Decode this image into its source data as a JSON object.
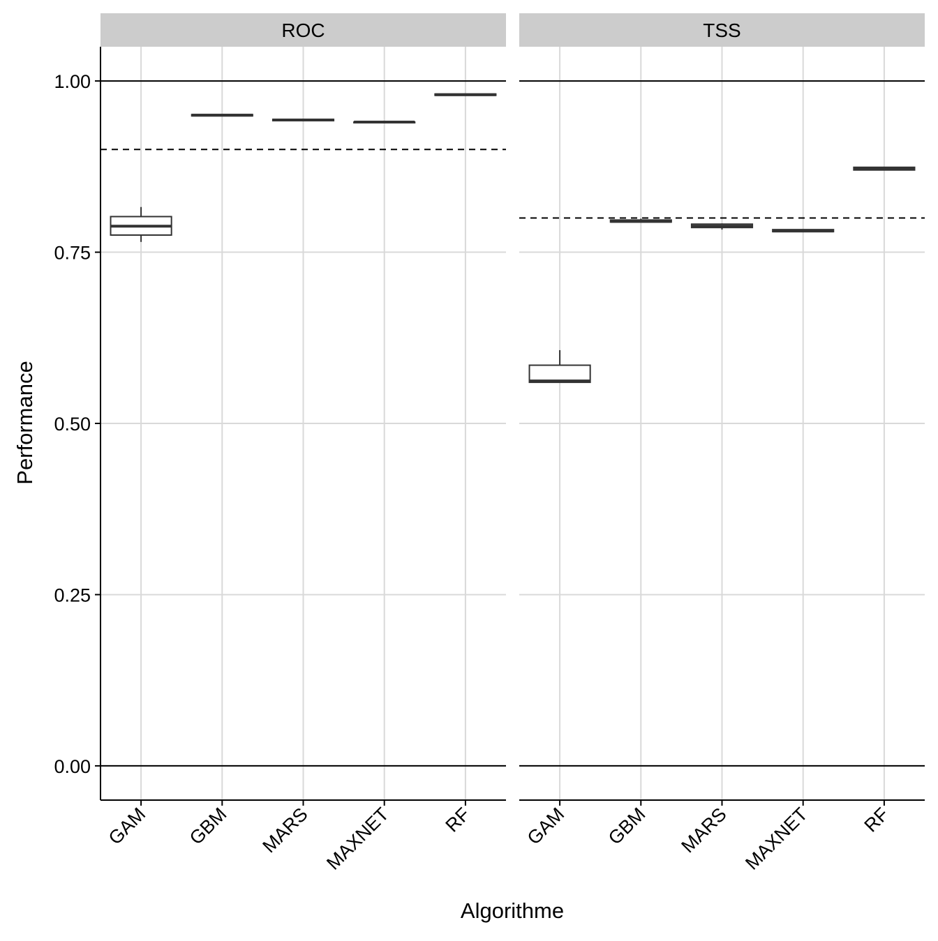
{
  "chart_data": {
    "type": "box",
    "xlabel": "Algorithme",
    "ylabel": "Performance",
    "categories": [
      "GAM",
      "GBM",
      "MARS",
      "MAXNET",
      "RF"
    ],
    "ylim": [
      -0.05,
      1.05
    ],
    "yticks": [
      0.0,
      0.25,
      0.5,
      0.75,
      1.0
    ],
    "ytick_labels": [
      "0.00",
      "0.25",
      "0.50",
      "0.75",
      "1.00"
    ],
    "reference_lines": [
      0,
      1
    ],
    "grid": true,
    "facets": [
      {
        "label": "ROC",
        "threshold": 0.9,
        "boxes": [
          {
            "category": "GAM",
            "min": 0.765,
            "q1": 0.775,
            "median": 0.788,
            "q3": 0.802,
            "max": 0.816
          },
          {
            "category": "GBM",
            "min": 0.949,
            "q1": 0.949,
            "median": 0.95,
            "q3": 0.951,
            "max": 0.951
          },
          {
            "category": "MARS",
            "min": 0.942,
            "q1": 0.942,
            "median": 0.943,
            "q3": 0.944,
            "max": 0.944
          },
          {
            "category": "MAXNET",
            "min": 0.939,
            "q1": 0.939,
            "median": 0.94,
            "q3": 0.94,
            "max": 0.94
          },
          {
            "category": "RF",
            "min": 0.979,
            "q1": 0.979,
            "median": 0.98,
            "q3": 0.981,
            "max": 0.981
          }
        ]
      },
      {
        "label": "TSS",
        "threshold": 0.8,
        "boxes": [
          {
            "category": "GAM",
            "min": 0.56,
            "q1": 0.56,
            "median": 0.562,
            "q3": 0.585,
            "max": 0.607
          },
          {
            "category": "GBM",
            "min": 0.794,
            "q1": 0.794,
            "median": 0.795,
            "q3": 0.797,
            "max": 0.799
          },
          {
            "category": "MARS",
            "min": 0.783,
            "q1": 0.786,
            "median": 0.788,
            "q3": 0.791,
            "max": 0.792
          },
          {
            "category": "MAXNET",
            "min": 0.78,
            "q1": 0.78,
            "median": 0.781,
            "q3": 0.783,
            "max": 0.783
          },
          {
            "category": "RF",
            "min": 0.87,
            "q1": 0.87,
            "median": 0.872,
            "q3": 0.874,
            "max": 0.874
          }
        ]
      }
    ]
  }
}
